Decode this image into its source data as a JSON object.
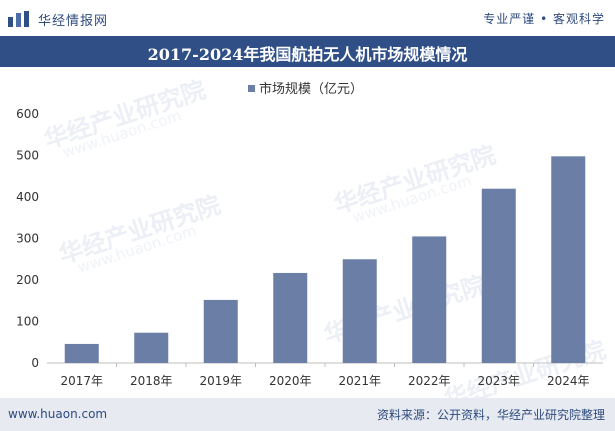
{
  "header": {
    "brand": "华经情报网",
    "tagline": "专业严谨 • 客观科学"
  },
  "watermark": {
    "text": "华经产业研究院",
    "url": "www.huaon.com"
  },
  "footer": {
    "site": "www.huaon.com",
    "source": "资料来源：公开资料，华经产业研究院整理"
  },
  "colors": {
    "bar": "#6a7ea6",
    "title_bg": "#2f4f86",
    "footer_bg": "#e7ebf1"
  },
  "chart_data": {
    "type": "bar",
    "title": "2017-2024年我国航拍无人机市场规模情况",
    "categories": [
      "2017年",
      "2018年",
      "2019年",
      "2020年",
      "2021年",
      "2022年",
      "2023年",
      "2024年"
    ],
    "series": [
      {
        "name": "市场规模（亿元）",
        "values": [
          46,
          73,
          152,
          217,
          250,
          305,
          420,
          498
        ]
      }
    ],
    "yticks": [
      0,
      100,
      200,
      300,
      400,
      500,
      600
    ],
    "ylim": [
      0,
      600
    ],
    "xlabel": "",
    "ylabel": "",
    "grid": false,
    "legend": "top-center"
  }
}
